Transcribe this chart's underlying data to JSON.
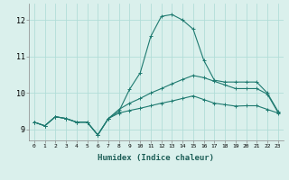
{
  "xlabel": "Humidex (Indice chaleur)",
  "background_color": "#daf0ec",
  "grid_color": "#b2ddd8",
  "line_color": "#1e7a70",
  "xlim_min": -0.5,
  "xlim_max": 23.5,
  "ylim_min": 8.7,
  "ylim_max": 12.45,
  "yticks": [
    9,
    10,
    11,
    12
  ],
  "xticks": [
    0,
    1,
    2,
    3,
    4,
    5,
    6,
    7,
    8,
    9,
    10,
    11,
    12,
    13,
    14,
    15,
    16,
    17,
    18,
    19,
    20,
    21,
    22,
    23
  ],
  "series": [
    [
      9.2,
      9.1,
      9.35,
      9.3,
      9.2,
      9.2,
      8.85,
      9.3,
      9.5,
      10.1,
      10.55,
      11.55,
      12.1,
      12.15,
      12.0,
      11.75,
      10.9,
      10.35,
      10.3,
      10.3,
      10.3,
      10.3,
      10.0,
      9.5
    ],
    [
      9.2,
      9.1,
      9.35,
      9.3,
      9.2,
      9.2,
      8.85,
      9.3,
      9.55,
      9.72,
      9.85,
      10.0,
      10.12,
      10.25,
      10.37,
      10.48,
      10.42,
      10.32,
      10.22,
      10.12,
      10.12,
      10.12,
      9.97,
      9.47
    ],
    [
      9.2,
      9.1,
      9.35,
      9.3,
      9.2,
      9.2,
      8.85,
      9.3,
      9.45,
      9.52,
      9.58,
      9.65,
      9.72,
      9.78,
      9.85,
      9.92,
      9.82,
      9.72,
      9.68,
      9.64,
      9.65,
      9.65,
      9.55,
      9.45
    ]
  ]
}
